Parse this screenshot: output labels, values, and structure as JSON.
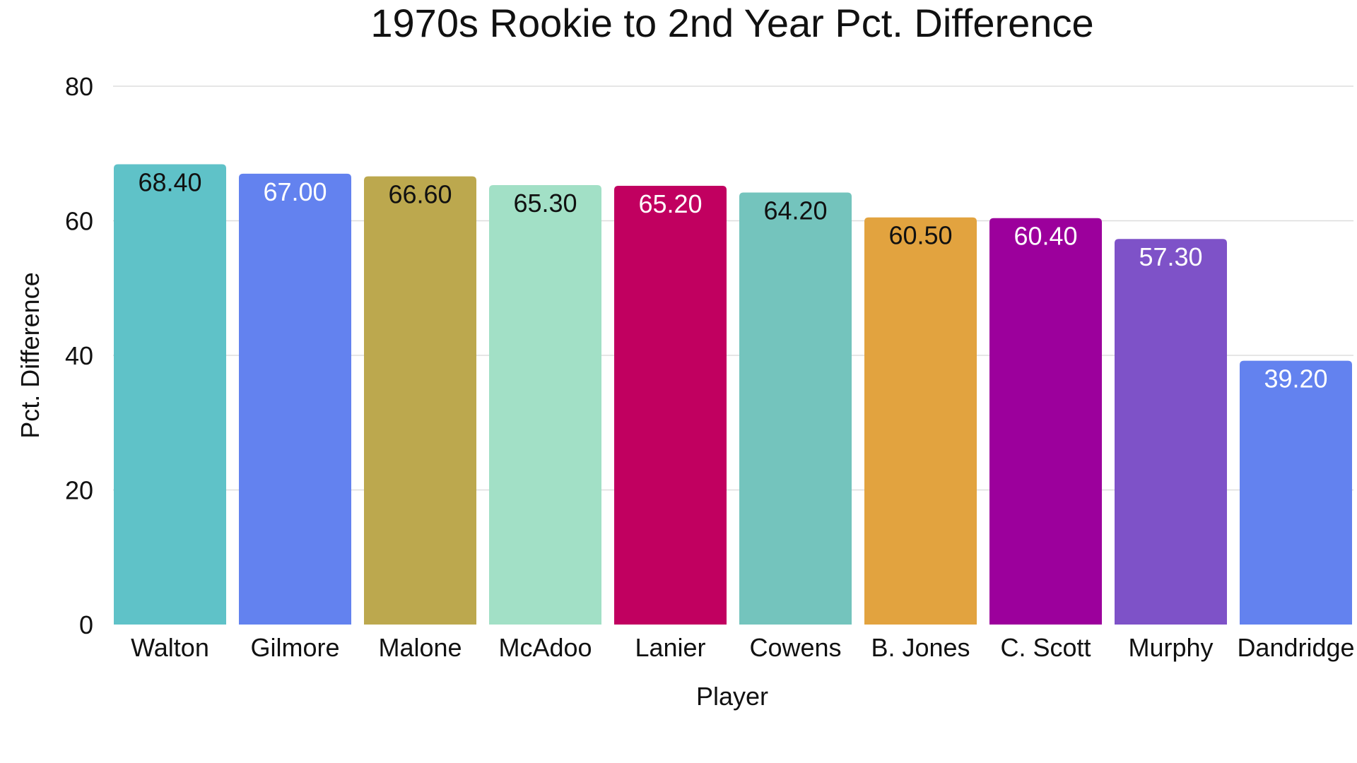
{
  "chart_data": {
    "type": "bar",
    "title": "1970s Rookie to 2nd Year Pct. Difference",
    "xlabel": "Player",
    "ylabel": "Pct. Difference",
    "ylim": [
      0,
      80
    ],
    "yticks": [
      0,
      20,
      40,
      60,
      80
    ],
    "grid": true,
    "legend": "none",
    "categories": [
      "Walton",
      "Gilmore",
      "Malone",
      "McAdoo",
      "Lanier",
      "Cowens",
      "B. Jones",
      "C. Scott",
      "Murphy",
      "Dandridge"
    ],
    "values": [
      68.4,
      67.0,
      66.6,
      65.3,
      65.2,
      64.2,
      60.5,
      60.4,
      57.3,
      39.2
    ],
    "value_labels": [
      "68.40",
      "67.00",
      "66.60",
      "65.30",
      "65.20",
      "64.20",
      "60.50",
      "60.40",
      "57.30",
      "39.20"
    ],
    "colors": [
      "#5fc2c8",
      "#6382ef",
      "#bca84e",
      "#a2e0c6",
      "#c10060",
      "#74c4bd",
      "#e2a33f",
      "#9c009c",
      "#7e52c8",
      "#6382ef"
    ],
    "label_colors": [
      "#111111",
      "#ffffff",
      "#111111",
      "#111111",
      "#ffffff",
      "#111111",
      "#111111",
      "#ffffff",
      "#ffffff",
      "#ffffff"
    ]
  }
}
